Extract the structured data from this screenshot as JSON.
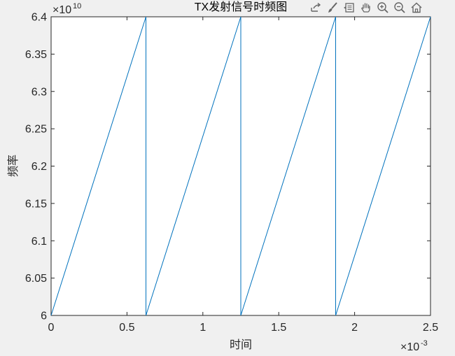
{
  "toolbar": {
    "buttons": [
      {
        "name": "export-icon"
      },
      {
        "name": "brush-icon"
      },
      {
        "name": "data-tips-icon"
      },
      {
        "name": "pan-hand-icon"
      },
      {
        "name": "zoom-in-icon"
      },
      {
        "name": "zoom-out-icon"
      },
      {
        "name": "home-icon"
      }
    ]
  },
  "chart_data": {
    "type": "line",
    "title": "TX发射信号时频图",
    "xlabel": "时间",
    "ylabel": "频率",
    "x_exponent_label": "×10",
    "x_exponent": "-3",
    "y_exponent_label": "×10",
    "y_exponent": "10",
    "xlim": [
      0,
      2.5
    ],
    "ylim": [
      6.0,
      6.4
    ],
    "xticks": [
      0,
      0.5,
      1,
      1.5,
      2,
      2.5
    ],
    "xtick_labels": [
      "0",
      "0.5",
      "1",
      "1.5",
      "2",
      "2.5"
    ],
    "yticks": [
      6.0,
      6.05,
      6.1,
      6.15,
      6.2,
      6.25,
      6.3,
      6.35,
      6.4
    ],
    "ytick_labels": [
      "6",
      "6.05",
      "6.1",
      "6.15",
      "6.2",
      "6.25",
      "6.3",
      "6.35",
      "6.4"
    ],
    "grid": false,
    "series": [
      {
        "color": "#0072BD",
        "x": [
          0,
          0.625,
          0.625,
          1.25,
          1.25,
          1.875,
          1.875,
          2.5
        ],
        "y": [
          6.0,
          6.4,
          6.0,
          6.4,
          6.0,
          6.4,
          6.0,
          6.4
        ]
      }
    ]
  }
}
